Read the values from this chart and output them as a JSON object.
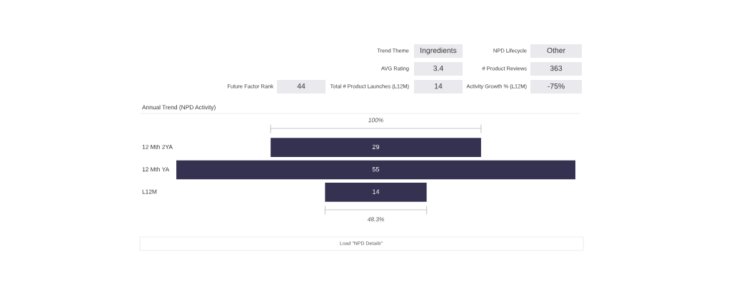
{
  "chart_data": [
    {
      "type": "other",
      "annotations": [
        "Trend Theme",
        "Ingredients",
        "NPD Lifecycle",
        "Other",
        "AVG Rating",
        "3.4",
        "# Product Reviews",
        "363",
        "Future Factor Rank",
        "44",
        "Total # Product Launches (L12M)",
        "14",
        "Activity Growth % (L12M)",
        "-75%"
      ]
    },
    {
      "type": "other",
      "title": "Annual Trend (NPD Activity)",
      "categories": [
        "12 Mth 2YA",
        "12 Mth YA",
        "L12M"
      ],
      "values": [
        29,
        55,
        14
      ],
      "color": "#343250",
      "data_labels": true,
      "annotations": [
        "100%",
        "48.3%",
        "Load \"NPD Details\""
      ]
    }
  ]
}
